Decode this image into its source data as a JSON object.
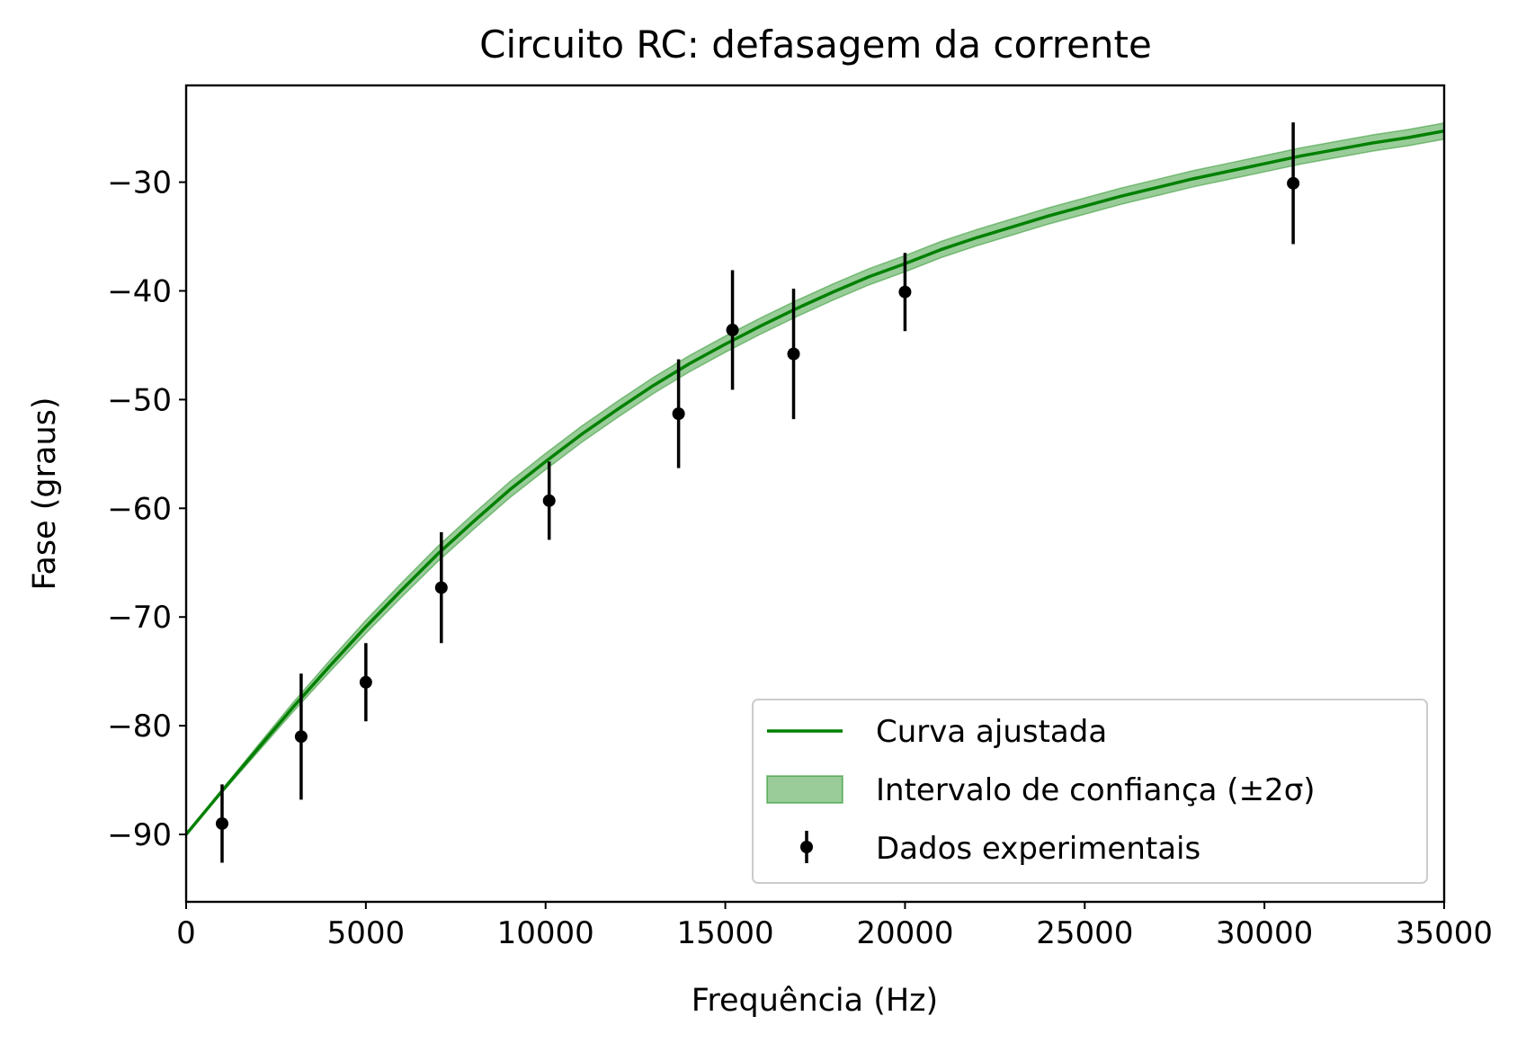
{
  "chart_data": {
    "type": "line",
    "title": "Circuito RC: defasagem da corrente",
    "xlabel": "Frequência (Hz)",
    "ylabel": "Fase (graus)",
    "xlim": [
      0,
      35000
    ],
    "ylim": [
      -96.2,
      -21.1
    ],
    "xticks": [
      0,
      5000,
      10000,
      15000,
      20000,
      25000,
      30000,
      35000
    ],
    "xtick_labels": [
      "0",
      "5000",
      "10000",
      "15000",
      "20000",
      "25000",
      "30000",
      "35000"
    ],
    "yticks": [
      -90,
      -80,
      -70,
      -60,
      -50,
      -40,
      -30
    ],
    "ytick_labels": [
      "−90",
      "−80",
      "−70",
      "−60",
      "−50",
      "−40",
      "−30"
    ],
    "grid": false,
    "legend_position": "lower right",
    "series": [
      {
        "name": "Curva ajustada",
        "kind": "line",
        "color": "#008000",
        "x": [
          0,
          1000,
          2000,
          3000,
          4000,
          5000,
          6000,
          7000,
          8000,
          9000,
          10000,
          11000,
          12000,
          13000,
          14000,
          15000,
          16000,
          17000,
          18000,
          19000,
          20000,
          21000,
          22000,
          23000,
          24000,
          25000,
          26000,
          27000,
          28000,
          29000,
          30000,
          31000,
          32000,
          33000,
          34000,
          35000
        ],
        "y": [
          -90.0,
          -86.0,
          -82.1,
          -78.2,
          -74.5,
          -70.9,
          -67.5,
          -64.2,
          -61.2,
          -58.3,
          -55.7,
          -53.2,
          -50.9,
          -48.7,
          -46.7,
          -44.9,
          -43.2,
          -41.6,
          -40.1,
          -38.7,
          -37.5,
          -36.2,
          -35.1,
          -34.1,
          -33.1,
          -32.2,
          -31.3,
          -30.5,
          -29.7,
          -29.0,
          -28.3,
          -27.6,
          -27.0,
          -26.4,
          -25.9,
          -25.3
        ]
      },
      {
        "name": "Intervalo de confiança (±2σ)",
        "kind": "band",
        "color": "#008000",
        "half_width": [
          0.0,
          0.16,
          0.31,
          0.43,
          0.53,
          0.61,
          0.66,
          0.7,
          0.72,
          0.74,
          0.75,
          0.75,
          0.75,
          0.75,
          0.75,
          0.75,
          0.75,
          0.75,
          0.75,
          0.75,
          0.75,
          0.75,
          0.75,
          0.75,
          0.75,
          0.75,
          0.75,
          0.75,
          0.75,
          0.75,
          0.75,
          0.75,
          0.75,
          0.75,
          0.75,
          0.75
        ]
      },
      {
        "name": "Dados experimentais",
        "kind": "errorbar",
        "color": "#000000",
        "points": [
          {
            "x": 1000,
            "y": -89.0,
            "err": 3.6
          },
          {
            "x": 3200,
            "y": -81.0,
            "err": 5.8
          },
          {
            "x": 5000,
            "y": -76.0,
            "err": 3.6
          },
          {
            "x": 7100,
            "y": -67.3,
            "err": 5.1
          },
          {
            "x": 10100,
            "y": -59.3,
            "err": 3.6
          },
          {
            "x": 13700,
            "y": -51.3,
            "err": 5.0
          },
          {
            "x": 15200,
            "y": -43.6,
            "err": 5.5
          },
          {
            "x": 16900,
            "y": -45.8,
            "err": 6.0
          },
          {
            "x": 20000,
            "y": -40.1,
            "err": 3.6
          },
          {
            "x": 30800,
            "y": -30.1,
            "err": 5.6
          }
        ]
      }
    ]
  }
}
